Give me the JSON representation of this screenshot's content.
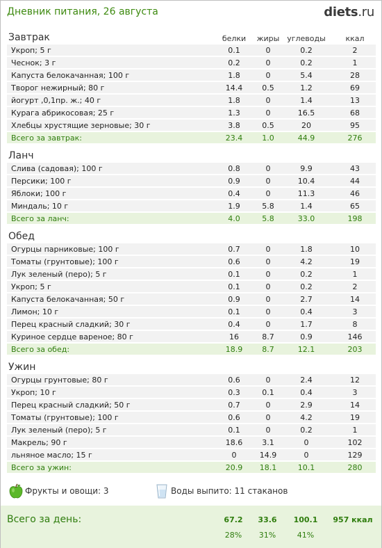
{
  "header": {
    "title": "Дневник питания, 26 августа",
    "logo_main": "diets",
    "logo_suffix": ".ru"
  },
  "columns": [
    "белки",
    "жиры",
    "углеводы",
    "ккал"
  ],
  "meals": [
    {
      "name": "Завтрак",
      "items": [
        [
          "Укроп; 5 г",
          "0.1",
          "0",
          "0.2",
          "2"
        ],
        [
          "Чеснок; 3 г",
          "0.2",
          "0",
          "0.2",
          "1"
        ],
        [
          "Капуста белокачанная; 100 г",
          "1.8",
          "0",
          "5.4",
          "28"
        ],
        [
          "Творог нежирный; 80 г",
          "14.4",
          "0.5",
          "1.2",
          "69"
        ],
        [
          "йогурт ,0,1пр. ж.; 40 г",
          "1.8",
          "0",
          "1.4",
          "13"
        ],
        [
          "Курага абрикосовая; 25 г",
          "1.3",
          "0",
          "16.5",
          "68"
        ],
        [
          "Хлебцы хрустящие зерновые; 30 г",
          "3.8",
          "0.5",
          "20",
          "95"
        ]
      ],
      "total": [
        "Всего за завтрак:",
        "23.4",
        "1.0",
        "44.9",
        "276"
      ]
    },
    {
      "name": "Ланч",
      "items": [
        [
          "Слива (садовая); 100 г",
          "0.8",
          "0",
          "9.9",
          "43"
        ],
        [
          "Персики; 100 г",
          "0.9",
          "0",
          "10.4",
          "44"
        ],
        [
          "Яблоки; 100 г",
          "0.4",
          "0",
          "11.3",
          "46"
        ],
        [
          "Миндаль; 10 г",
          "1.9",
          "5.8",
          "1.4",
          "65"
        ]
      ],
      "total": [
        "Всего за ланч:",
        "4.0",
        "5.8",
        "33.0",
        "198"
      ]
    },
    {
      "name": "Обед",
      "items": [
        [
          "Огурцы парниковые; 100 г",
          "0.7",
          "0",
          "1.8",
          "10"
        ],
        [
          "Томаты (грунтовые); 100 г",
          "0.6",
          "0",
          "4.2",
          "19"
        ],
        [
          "Лук зеленый (перо); 5 г",
          "0.1",
          "0",
          "0.2",
          "1"
        ],
        [
          "Укроп; 5 г",
          "0.1",
          "0",
          "0.2",
          "2"
        ],
        [
          "Капуста белокачанная; 50 г",
          "0.9",
          "0",
          "2.7",
          "14"
        ],
        [
          "Лимон; 10 г",
          "0.1",
          "0",
          "0.4",
          "3"
        ],
        [
          "Перец красный сладкий; 30 г",
          "0.4",
          "0",
          "1.7",
          "8"
        ],
        [
          "Куриное сердце вареное; 80 г",
          "16",
          "8.7",
          "0.9",
          "146"
        ]
      ],
      "total": [
        "Всего за обед:",
        "18.9",
        "8.7",
        "12.1",
        "203"
      ]
    },
    {
      "name": "Ужин",
      "items": [
        [
          "Огурцы грунтовые; 80 г",
          "0.6",
          "0",
          "2.4",
          "12"
        ],
        [
          "Укроп; 10 г",
          "0.3",
          "0.1",
          "0.4",
          "3"
        ],
        [
          "Перец красный сладкий; 50 г",
          "0.7",
          "0",
          "2.9",
          "14"
        ],
        [
          "Томаты (грунтовые); 100 г",
          "0.6",
          "0",
          "4.2",
          "19"
        ],
        [
          "Лук зеленый (перо); 5 г",
          "0.1",
          "0",
          "0.2",
          "1"
        ],
        [
          "Макрель; 90 г",
          "18.6",
          "3.1",
          "0",
          "102"
        ],
        [
          "льняное масло; 15 г",
          "0",
          "14.9",
          "0",
          "129"
        ]
      ],
      "total": [
        "Всего за ужин:",
        "20.9",
        "18.1",
        "10.1",
        "280"
      ]
    }
  ],
  "extras": {
    "fruits_label": "Фрукты и овощи: 3",
    "fruits_icon": "green-apple-icon",
    "water_label": "Воды выпито: 11 стаканов",
    "water_icon": "water-glass-icon"
  },
  "summary": {
    "label": "Всего за день:",
    "values": [
      "67.2",
      "33.6",
      "100.1",
      "957 ккал"
    ],
    "percents": [
      "28%",
      "31%",
      "41%"
    ]
  },
  "colors": {
    "title_green": "#3e8a10",
    "total_green": "#2f7d0e",
    "row_bg": "#f2f2f2",
    "total_bg": "#e8f3dd"
  }
}
